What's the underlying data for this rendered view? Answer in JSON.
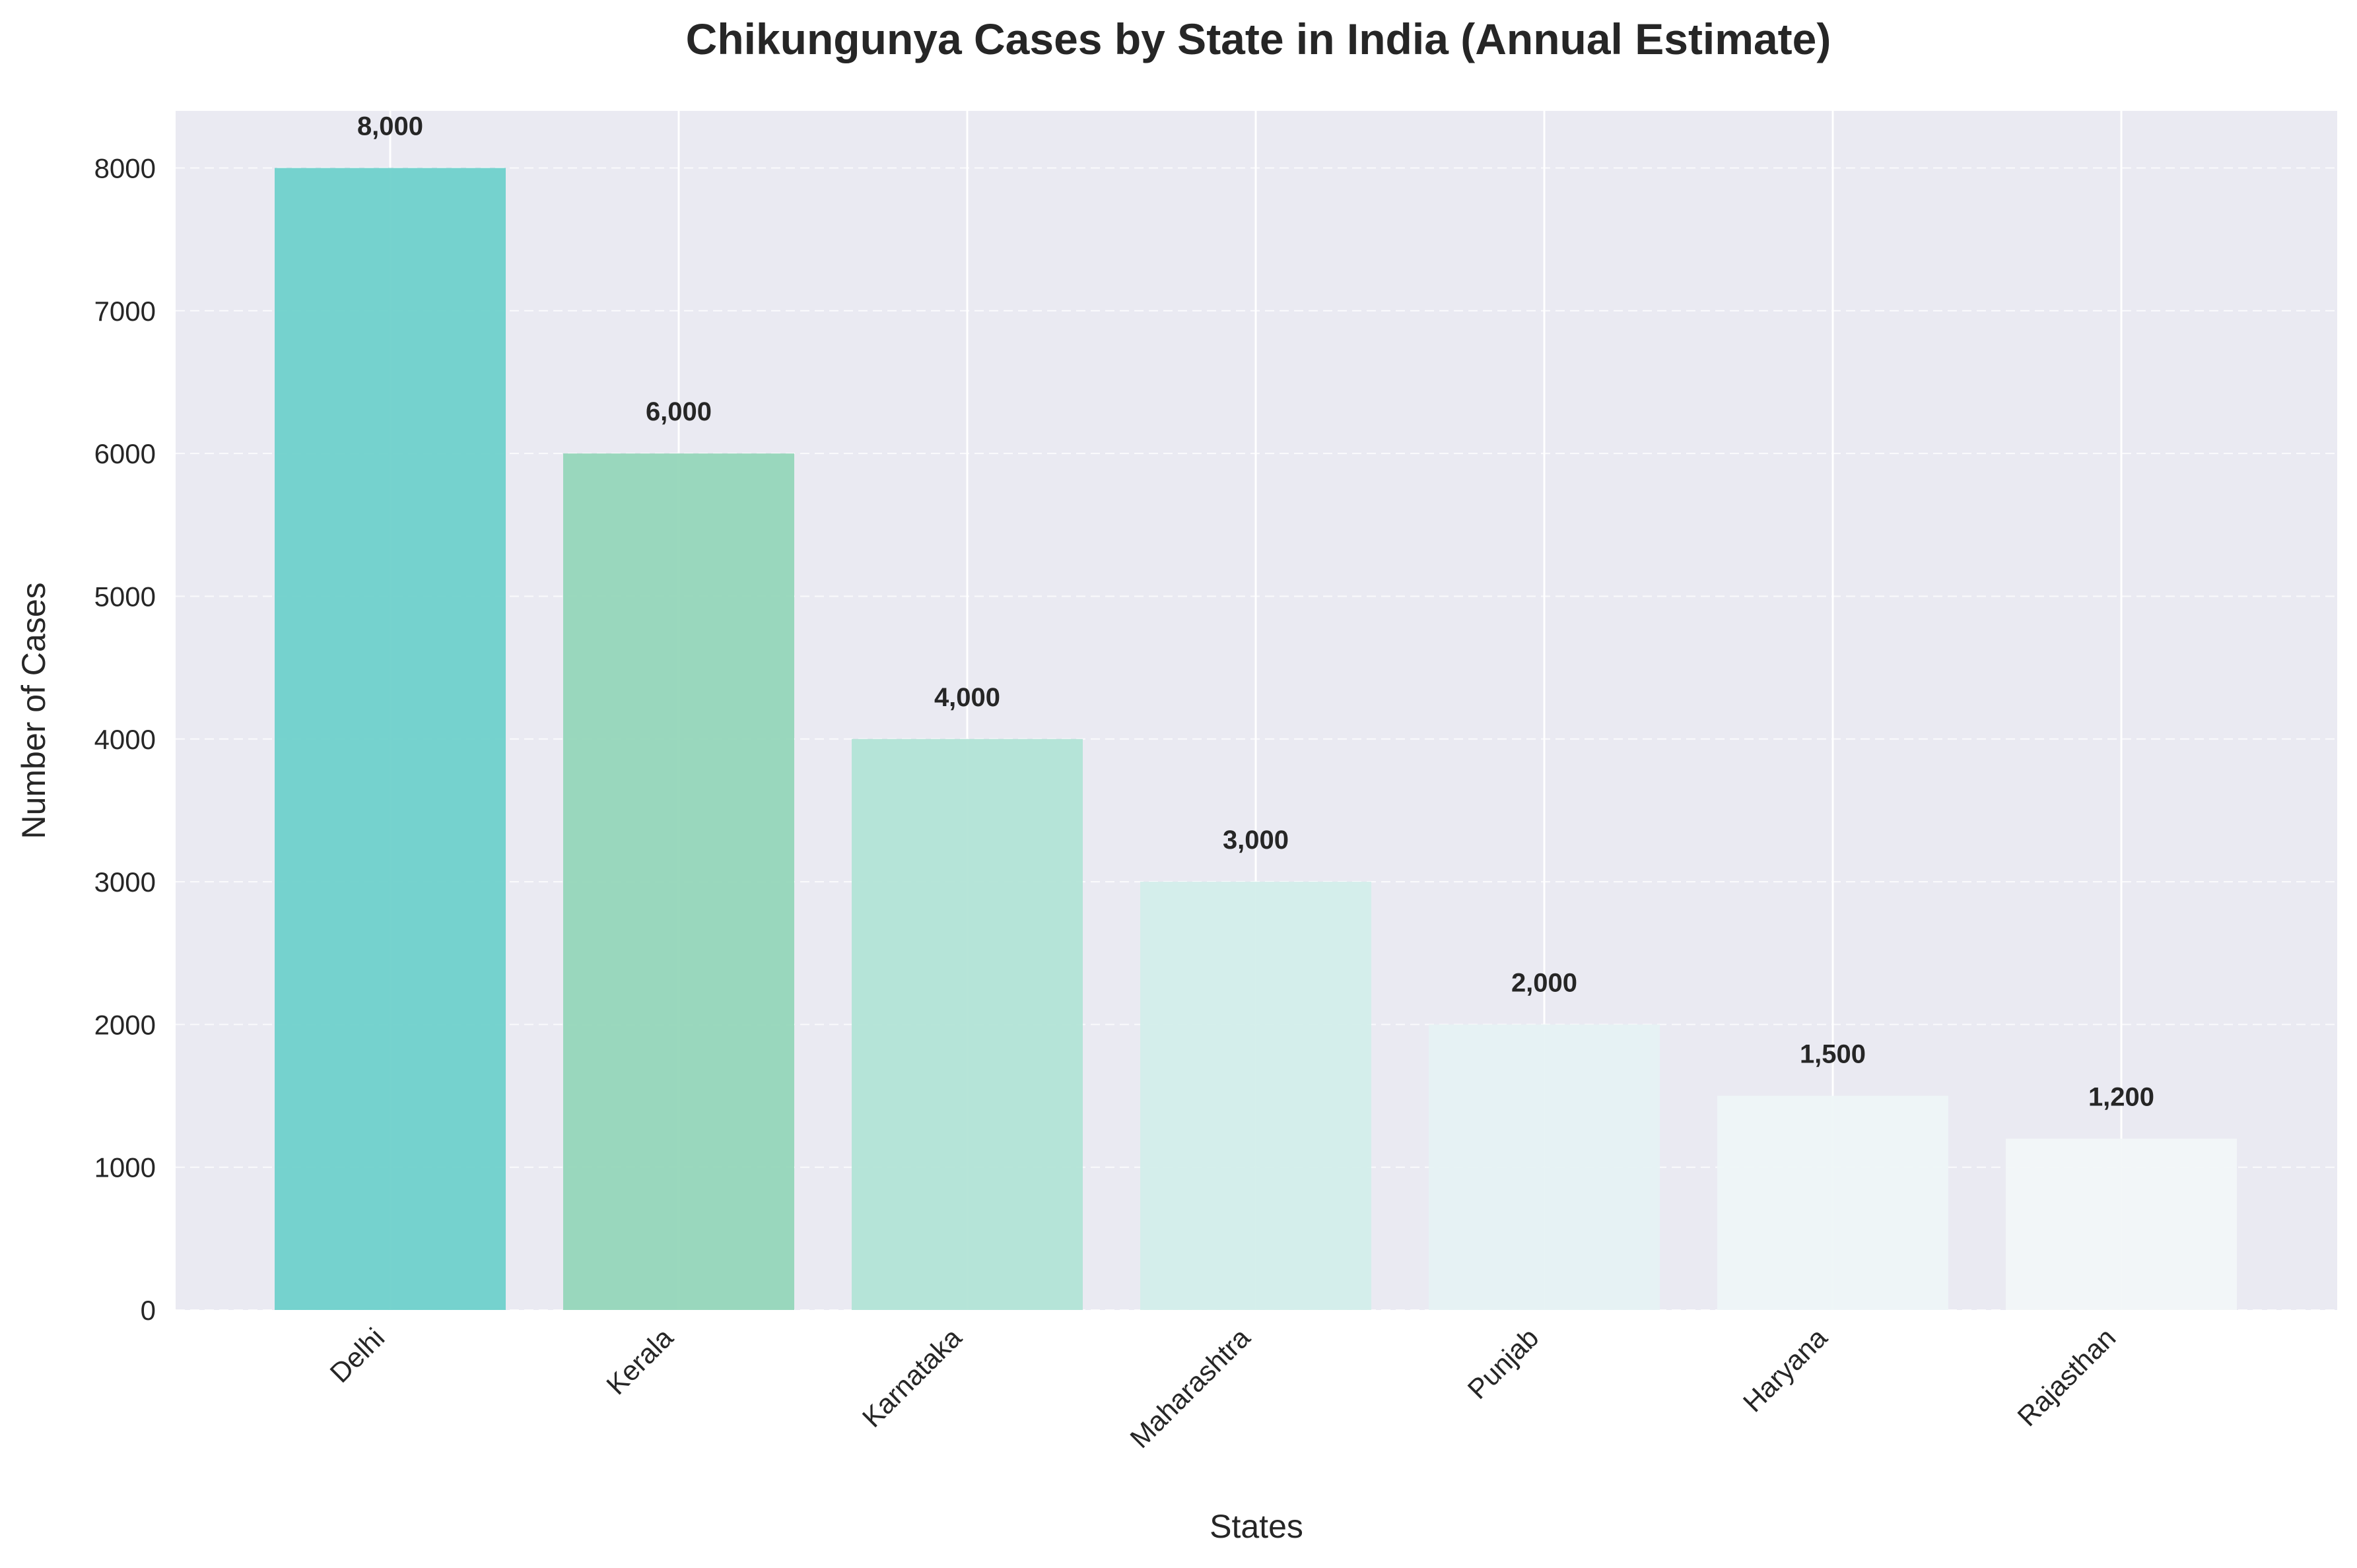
{
  "chart_data": {
    "type": "bar",
    "title": "Chikungunya Cases by State in India (Annual Estimate)",
    "xlabel": "States",
    "ylabel": "Number of Cases",
    "categories": [
      "Delhi",
      "Kerala",
      "Karnataka",
      "Maharashtra",
      "Punjab",
      "Haryana",
      "Rajasthan"
    ],
    "values": [
      8000,
      6000,
      4000,
      3000,
      2000,
      1500,
      1200
    ],
    "value_labels": [
      "8,000",
      "6,000",
      "4,000",
      "3,000",
      "2,000",
      "1,500",
      "1,200"
    ],
    "bar_colors": [
      "#6fd1cb",
      "#95d6b9",
      "#b2e4d6",
      "#d3eeea",
      "#e6f2f3",
      "#eef6f7",
      "#f2f7f8"
    ],
    "ylim": [
      0,
      8400
    ],
    "yticks": [
      0,
      1000,
      2000,
      3000,
      4000,
      5000,
      6000,
      7000,
      8000
    ],
    "ytick_labels": [
      "0",
      "1000",
      "2000",
      "3000",
      "4000",
      "5000",
      "6000",
      "7000",
      "8000"
    ],
    "grid": true,
    "grid_style": {
      "x": "solid",
      "y": "dashed"
    },
    "plot_background": "#eaeaf2",
    "legend": "none"
  }
}
